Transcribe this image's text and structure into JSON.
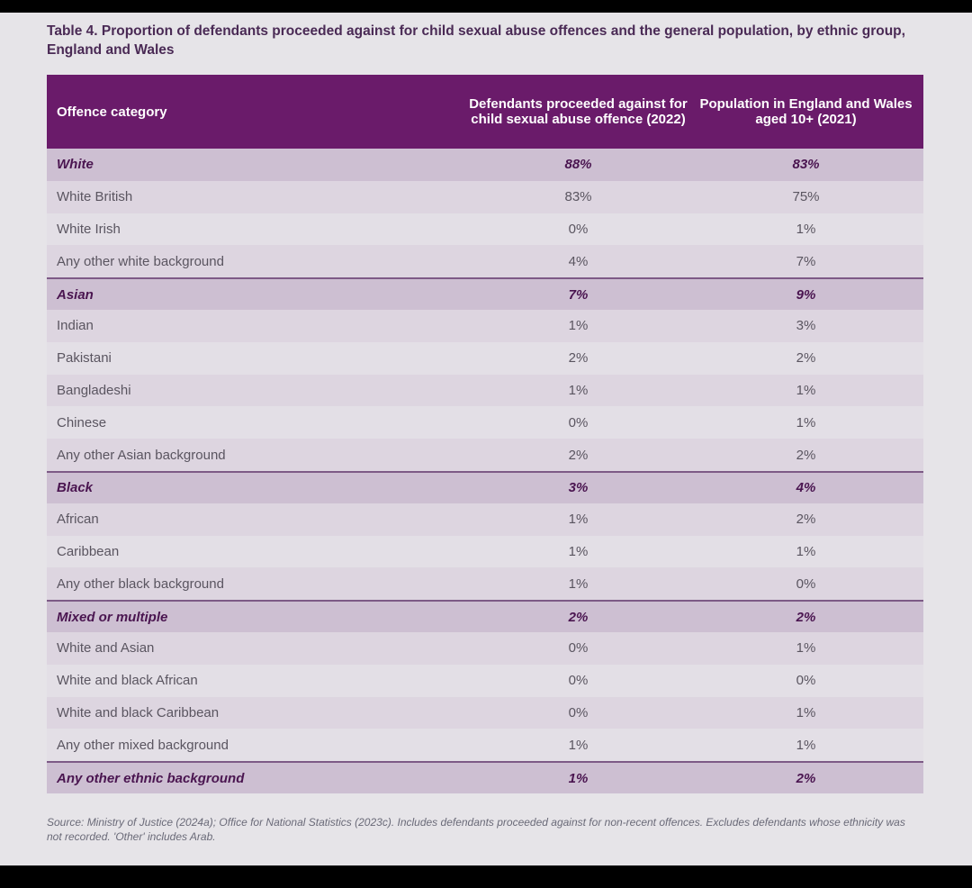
{
  "title": "Table 4. Proportion of defendants proceeded against for child sexual abuse offences and the general population, by ethnic group, England and Wales",
  "table": {
    "columns": [
      "Offence category",
      "Defendants proceeded against for child sexual abuse offence (2022)",
      "Population in England and Wales aged 10+ (2021)"
    ],
    "rows": [
      {
        "category": "White",
        "defendants": "88%",
        "population": "83%",
        "group": true
      },
      {
        "category": "White British",
        "defendants": "83%",
        "population": "75%"
      },
      {
        "category": "White Irish",
        "defendants": "0%",
        "population": "1%"
      },
      {
        "category": "Any other white background",
        "defendants": "4%",
        "population": "7%"
      },
      {
        "category": "Asian",
        "defendants": "7%",
        "population": "9%",
        "group": true
      },
      {
        "category": "Indian",
        "defendants": "1%",
        "population": "3%"
      },
      {
        "category": "Pakistani",
        "defendants": "2%",
        "population": "2%"
      },
      {
        "category": "Bangladeshi",
        "defendants": "1%",
        "population": "1%"
      },
      {
        "category": "Chinese",
        "defendants": "0%",
        "population": "1%"
      },
      {
        "category": "Any other Asian background",
        "defendants": "2%",
        "population": "2%"
      },
      {
        "category": "Black",
        "defendants": "3%",
        "population": "4%",
        "group": true
      },
      {
        "category": "African",
        "defendants": "1%",
        "population": "2%"
      },
      {
        "category": "Caribbean",
        "defendants": "1%",
        "population": "1%"
      },
      {
        "category": "Any other black background",
        "defendants": "1%",
        "population": "0%"
      },
      {
        "category": "Mixed or multiple",
        "defendants": "2%",
        "population": "2%",
        "group": true
      },
      {
        "category": "White and Asian",
        "defendants": "0%",
        "population": "1%"
      },
      {
        "category": "White and black African",
        "defendants": "0%",
        "population": "0%"
      },
      {
        "category": "White and black Caribbean",
        "defendants": "0%",
        "population": "1%"
      },
      {
        "category": "Any other mixed background",
        "defendants": "1%",
        "population": "1%"
      },
      {
        "category": "Any other ethnic background",
        "defendants": "1%",
        "population": "2%",
        "group": true
      }
    ]
  },
  "source": "Source: Ministry of Justice (2024a); Office for National Statistics (2023c). Includes defendants proceeded against for non-recent offences. Excludes defendants whose ethnicity was not recorded. 'Other' includes Arab."
}
